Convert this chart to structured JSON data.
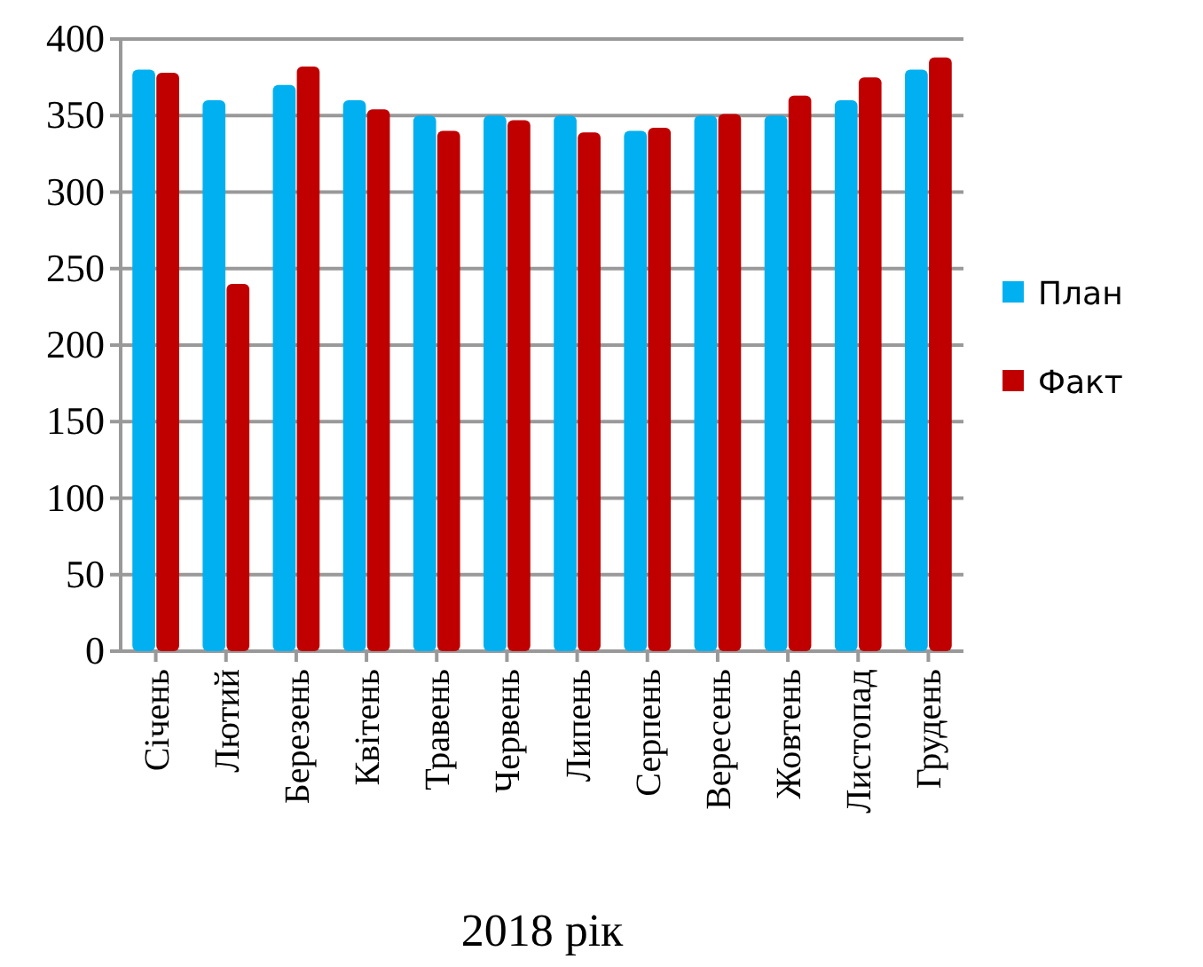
{
  "chart_data": {
    "type": "bar",
    "xlabel": "2018 рік",
    "categories": [
      "Січень",
      "Лютий",
      "Березень",
      "Квітень",
      "Травень",
      "Червень",
      "Липень",
      "Серпень",
      "Вересень",
      "Жовтень",
      "Листопад",
      "Грудень"
    ],
    "series": [
      {
        "name": "План",
        "color": "#00b0f0",
        "values": [
          380,
          360,
          370,
          360,
          350,
          350,
          350,
          340,
          350,
          350,
          360,
          380
        ]
      },
      {
        "name": "Факт",
        "color": "#c00000",
        "values": [
          378,
          240,
          382,
          354,
          340,
          347,
          339,
          342,
          351,
          363,
          375,
          388
        ]
      }
    ],
    "ylim": [
      0,
      400
    ],
    "yticks": [
      0,
      50,
      100,
      150,
      200,
      250,
      300,
      350,
      400
    ],
    "grid": "y",
    "legend": "right"
  }
}
